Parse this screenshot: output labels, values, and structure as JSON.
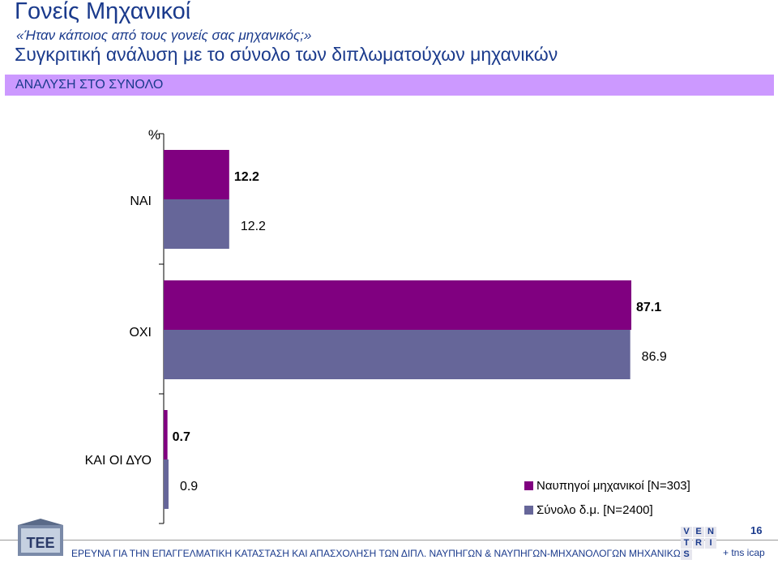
{
  "header": {
    "title": "Γονείς Μηχανικοί",
    "question": "«Ήταν κάποιος από τους γονείς σας μηχανικός;»",
    "subtitle": "Συγκριτική ανάλυση με το σύνολο των διπλωματούχων μηχανικών",
    "band_label": "ΑΝΑΛΥΣΗ ΣΤΟ ΣΥΝΟΛΟ"
  },
  "chart_data": {
    "type": "bar",
    "orientation": "horizontal",
    "unit_label": "%",
    "categories": [
      "ΝΑΙ",
      "ΟΧΙ",
      "ΚΑΙ ΟΙ ΔΥΟ"
    ],
    "series": [
      {
        "name": "Ναυπηγοί μηχανικοί [N=303]",
        "values": [
          12.2,
          87.1,
          0.7
        ],
        "color": "#800080"
      },
      {
        "name": "Σύνολο δ.μ. [N=2400]",
        "values": [
          12.2,
          86.9,
          0.9
        ],
        "color": "#666699"
      }
    ],
    "value_labels": [
      [
        "12.2",
        "87.1",
        "0.7"
      ],
      [
        "12.2",
        "86.9",
        "0.9"
      ]
    ],
    "xlim": [
      0,
      100
    ],
    "grid": false,
    "legend_position": "bottom-right"
  },
  "footer": {
    "text": "ΕΡΕΥΝΑ ΓΙΑ ΤΗΝ ΕΠΑΓΓΕΛΜΑΤΙΚΗ ΚΑΤΑΣΤΑΣΗ ΚΑΙ ΑΠΑΣΧΟΛΗΣΗ ΤΩΝ ΔΙΠΛ. ΝΑΥΠΗΓΩΝ & ΝΑΥΠΗΓΩΝ-ΜΗΧΑΝΟΛΟΓΩΝ ΜΗΧΑΝΙΚΩΝ",
    "page_number": "16",
    "logo_tee": "TEE",
    "vents_letters": [
      "V",
      "E",
      "N",
      "T",
      "R",
      "I",
      "S"
    ],
    "brand": "+ tns icap"
  }
}
